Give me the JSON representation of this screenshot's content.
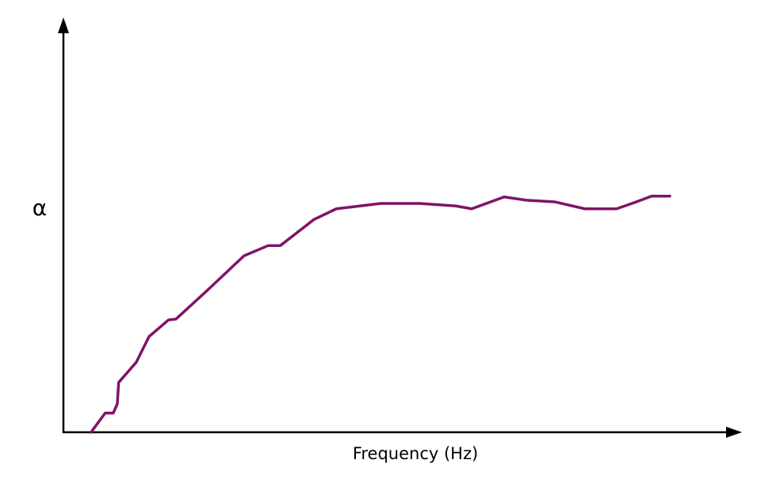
{
  "chart_data": {
    "type": "line",
    "xlabel": "Frequency (Hz)",
    "ylabel": "α",
    "xlim": [
      0,
      100
    ],
    "ylim": [
      0,
      100
    ],
    "x": [
      4.1,
      6.2,
      7.4,
      8.0,
      8.2,
      10.8,
      12.7,
      15.6,
      16.7,
      21.2,
      26.8,
      30.4,
      32.2,
      37.2,
      40.5,
      47.1,
      52.9,
      58.2,
      60.6,
      65.4,
      68.7,
      72.9,
      77.4,
      82.1,
      84.7,
      87.3,
      90.0
    ],
    "series": [
      {
        "color": "#7e1468",
        "values": [
          0,
          4.7,
          4.7,
          7.0,
          12.2,
          17.1,
          23.4,
          27.5,
          27.7,
          34.5,
          43.2,
          45.7,
          45.7,
          52.1,
          54.7,
          56.0,
          56.0,
          55.4,
          54.7,
          57.6,
          56.8,
          56.4,
          54.7,
          54.7,
          56.2,
          57.8,
          57.8
        ]
      }
    ]
  }
}
